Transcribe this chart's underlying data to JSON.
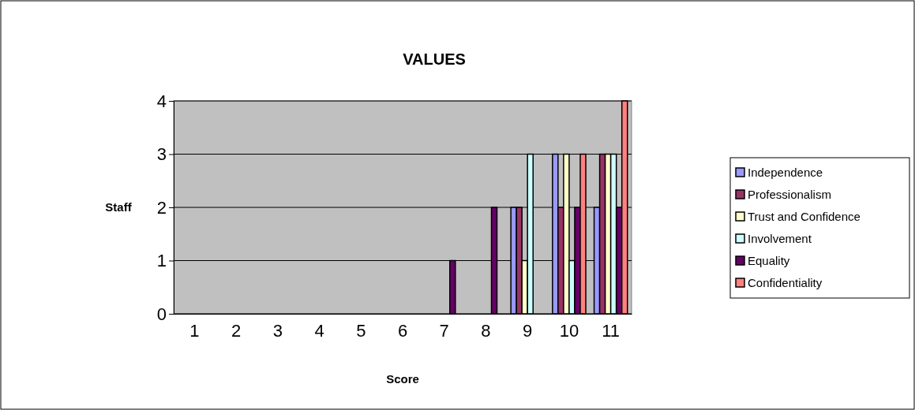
{
  "chart_data": {
    "type": "bar",
    "title": "VALUES",
    "xlabel": "Score",
    "ylabel": "Staff",
    "categories": [
      "1",
      "2",
      "3",
      "4",
      "5",
      "6",
      "7",
      "8",
      "9",
      "10",
      "11"
    ],
    "series": [
      {
        "name": "Independence",
        "color": "#9999ff",
        "values": [
          0,
          0,
          0,
          0,
          0,
          0,
          0,
          0,
          2,
          3,
          2
        ]
      },
      {
        "name": "Professionalism",
        "color": "#993366",
        "values": [
          0,
          0,
          0,
          0,
          0,
          0,
          0,
          0,
          2,
          2,
          3
        ]
      },
      {
        "name": "Trust and Confidence",
        "color": "#ffffcc",
        "values": [
          0,
          0,
          0,
          0,
          0,
          0,
          0,
          0,
          1,
          3,
          3
        ]
      },
      {
        "name": "Involvement",
        "color": "#ccffff",
        "values": [
          0,
          0,
          0,
          0,
          0,
          0,
          0,
          0,
          3,
          1,
          3
        ]
      },
      {
        "name": "Equality",
        "color": "#660066",
        "values": [
          0,
          0,
          0,
          0,
          0,
          0,
          1,
          2,
          0,
          2,
          2
        ]
      },
      {
        "name": "Confidentiality",
        "color": "#ff8080",
        "values": [
          0,
          0,
          0,
          0,
          0,
          0,
          0,
          0,
          0,
          3,
          4
        ]
      }
    ],
    "ylim": [
      0,
      4
    ],
    "yticks": [
      0,
      1,
      2,
      3,
      4
    ],
    "grid": "y",
    "legend": "right"
  }
}
